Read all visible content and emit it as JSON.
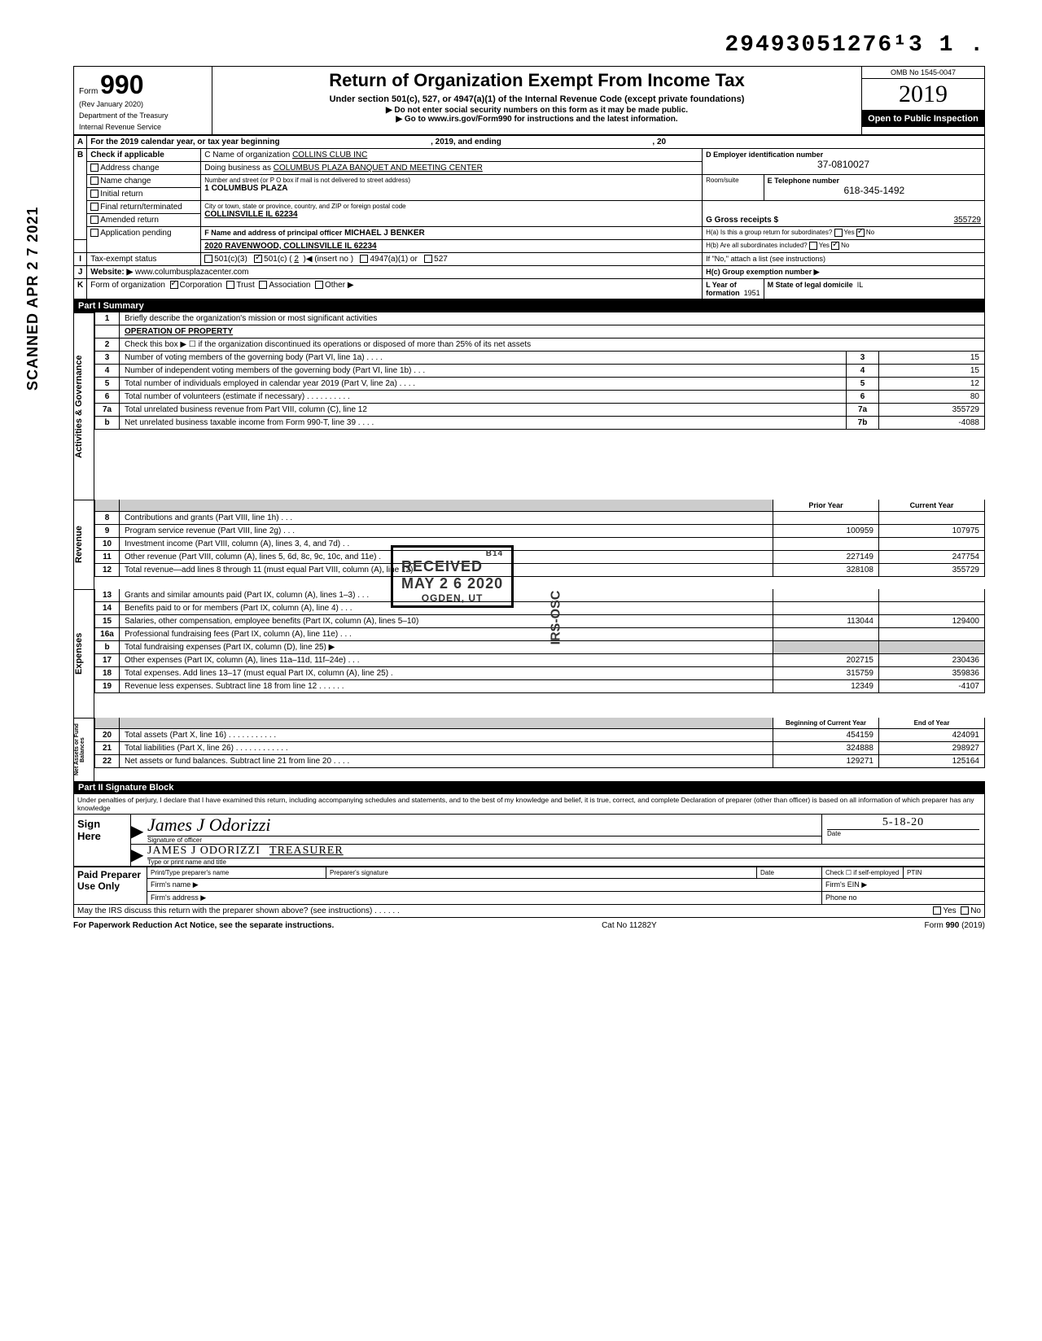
{
  "topnumber": "29493051276¹3  1 .",
  "vertical_scan": "SCANNED APR 2 7 2021",
  "form": {
    "form_label": "Form",
    "number": "990",
    "rev": "(Rev January 2020)",
    "dept1": "Department of the Treasury",
    "dept2": "Internal Revenue Service"
  },
  "title": {
    "main": "Return of Organization Exempt From Income Tax",
    "sub1": "Under section 501(c), 527, or 4947(a)(1) of the Internal Revenue Code (except private foundations)",
    "sub2": "▶ Do not enter social security numbers on this form as it may be made public.",
    "sub3": "▶ Go to www.irs.gov/Form990 for instructions and the latest information."
  },
  "rightbox": {
    "omb": "OMB No 1545-0047",
    "year": "2019",
    "open": "Open to Public Inspection"
  },
  "rowA": {
    "label": "A",
    "text1": "For the 2019 calendar year, or tax year beginning",
    "text2": ", 2019, and ending",
    "text3": ", 20"
  },
  "rowB": {
    "label": "B",
    "check_label": "Check if applicable",
    "opts": [
      "Address change",
      "Name change",
      "Initial return",
      "Final return/terminated",
      "Amended return",
      "Application pending"
    ]
  },
  "C": {
    "name_lbl": "C Name of organization",
    "name": "COLLINS CLUB INC",
    "dba_lbl": "Doing business as",
    "dba": "COLUMBUS PLAZA BANQUET AND MEETING CENTER",
    "addr_lbl": "Number and street (or P O  box if mail is not delivered to street address)",
    "addr": "1 COLUMBUS PLAZA",
    "city_lbl": "City or town, state or province, country, and ZIP or foreign postal code",
    "city": "COLLINSVILLE IL  62234",
    "room_lbl": "Room/suite"
  },
  "D": {
    "lbl": "D Employer identification number",
    "val": "37-0810027"
  },
  "E": {
    "lbl": "E Telephone number",
    "val": "618-345-1492"
  },
  "G": {
    "lbl": "G Gross receipts $",
    "val": "355729"
  },
  "F": {
    "lbl": "F Name and address of principal officer",
    "name": "MICHAEL J BENKER",
    "addr": "2020 RAVENWOOD, COLLINSVILLE IL  62234"
  },
  "Ha": {
    "lbl": "H(a) Is this a group return for subordinates?",
    "yes": "Yes",
    "no": "No"
  },
  "Hb": {
    "lbl": "H(b) Are all subordinates included?",
    "yes": "Yes",
    "no": "No"
  },
  "Hnote": "If \"No,\" attach a list  (see instructions)",
  "Hc": {
    "lbl": "H(c) Group exemption number ▶"
  },
  "I": {
    "lbl": "I",
    "text": "Tax-exempt status",
    "opts": [
      "501(c)(3)",
      "501(c) (",
      "◀ (insert no )",
      "4947(a)(1) or",
      "527"
    ],
    "num": "2",
    "checked": 1
  },
  "J": {
    "lbl": "J",
    "text": "Website: ▶",
    "val": "www.columbusplazacenter.com"
  },
  "K": {
    "lbl": "K",
    "text": "Form of organization",
    "opts": [
      "Corporation",
      "Trust",
      "Association",
      "Other ▶"
    ],
    "checked": 0,
    "Llbl": "L Year of formation",
    "Lval": "1951",
    "Mlbl": "M State of legal domicile",
    "Mval": "IL"
  },
  "part1_hdr": "Part I    Summary",
  "side_labels": {
    "ag": "Activities & Governance",
    "rev": "Revenue",
    "exp": "Expenses",
    "nab": "Net Assets or\nFund Balances"
  },
  "lines_ag": [
    {
      "n": "1",
      "t": "Briefly describe the organization's mission or most significant activities",
      "v": ""
    },
    {
      "n": "",
      "t": "OPERATION OF PROPERTY",
      "v": "",
      "under": true,
      "bold": true
    },
    {
      "n": "2",
      "t": "Check this box ▶ ☐ if the organization discontinued its operations or disposed of more than 25% of its net assets",
      "v": ""
    },
    {
      "n": "3",
      "t": "Number of voting members of the governing body (Part VI, line 1a) .    .    .    .",
      "box": "3",
      "v": "15"
    },
    {
      "n": "4",
      "t": "Number of independent voting members of the governing body (Part VI, line 1b)    .    .    .",
      "box": "4",
      "v": "15"
    },
    {
      "n": "5",
      "t": "Total number of individuals employed in calendar year 2019 (Part V, line 2a)    .    .    .    .",
      "box": "5",
      "v": "12"
    },
    {
      "n": "6",
      "t": "Total number of volunteers (estimate if necessary)    .    .    .    .    .    .    .    .    .    .",
      "box": "6",
      "v": "80"
    },
    {
      "n": "7a",
      "t": "Total unrelated business revenue from Part VIII, column (C), line 12",
      "box": "7a",
      "v": "355729"
    },
    {
      "n": "b",
      "t": "Net unrelated business taxable income from Form 990-T, line 39    .    .    .    .",
      "box": "7b",
      "v": "-4088"
    }
  ],
  "rev_hdr": {
    "py": "Prior Year",
    "cy": "Current Year"
  },
  "lines_rev": [
    {
      "n": "8",
      "t": "Contributions and grants (Part VIII, line 1h)    .    .    .",
      "py": "",
      "cy": ""
    },
    {
      "n": "9",
      "t": "Program service revenue (Part VIII, line 2g)    .    .    .",
      "py": "100959",
      "cy": "107975"
    },
    {
      "n": "10",
      "t": "Investment income (Part VIII, column (A), lines 3, 4, and 7d)    .    .",
      "py": "",
      "cy": ""
    },
    {
      "n": "11",
      "t": "Other revenue (Part VIII, column (A), lines 5, 6d, 8c, 9c, 10c, and 11e)    .",
      "py": "227149",
      "cy": "247754"
    },
    {
      "n": "12",
      "t": "Total revenue—add lines 8 through 11 (must equal Part VIII, column (A), line 12)",
      "py": "328108",
      "cy": "355729"
    }
  ],
  "lines_exp": [
    {
      "n": "13",
      "t": "Grants and similar amounts paid (Part IX, column (A), lines 1–3) .    .    .",
      "py": "",
      "cy": ""
    },
    {
      "n": "14",
      "t": "Benefits paid to or for members (Part IX, column (A), line 4)    .    .    .",
      "py": "",
      "cy": ""
    },
    {
      "n": "15",
      "t": "Salaries, other compensation, employee benefits (Part IX, column (A), lines 5–10)",
      "py": "113044",
      "cy": "129400"
    },
    {
      "n": "16a",
      "t": "Professional fundraising fees (Part IX, column (A),  line 11e)    .    .    .",
      "py": "",
      "cy": ""
    },
    {
      "n": "b",
      "t": "Total fundraising expenses (Part IX, column (D), line 25) ▶",
      "py": "gray",
      "cy": "gray"
    },
    {
      "n": "17",
      "t": "Other expenses (Part IX, column (A), lines 11a–11d, 11f–24e)      .    .    .",
      "py": "202715",
      "cy": "230436"
    },
    {
      "n": "18",
      "t": "Total expenses. Add lines 13–17 (must equal Part IX, column (A), line 25)    .",
      "py": "315759",
      "cy": "359836"
    },
    {
      "n": "19",
      "t": "Revenue less expenses. Subtract line 18 from line 12    .    .    .    .    .    .",
      "py": "12349",
      "cy": "-4107"
    }
  ],
  "nab_hdr": {
    "py": "Beginning of Current Year",
    "cy": "End of Year"
  },
  "lines_nab": [
    {
      "n": "20",
      "t": "Total assets (Part X, line 16)      .    .    .    .    .    .    .    .    .    .    .",
      "py": "454159",
      "cy": "424091"
    },
    {
      "n": "21",
      "t": "Total liabilities (Part X, line 26) .    .    .    .    .    .    .    .    .    .    .    .",
      "py": "324888",
      "cy": "298927"
    },
    {
      "n": "22",
      "t": "Net assets or fund balances. Subtract line 21 from line 20    .    .    .    .",
      "py": "129271",
      "cy": "125164"
    }
  ],
  "part2_hdr": "Part II    Signature Block",
  "perjury": "Under penalties of perjury, I declare that I have examined this return, including accompanying schedules and statements, and to the best of my knowledge  and belief, it is true, correct, and complete  Declaration of preparer (other than officer) is based on all information of which preparer has any knowledge",
  "sign": {
    "here": "Sign Here",
    "sig_lbl": "Signature of officer",
    "date_lbl": "Date",
    "date_val": "5-18-20",
    "type_lbl": "Type or print name and title",
    "name": "JAMES  J    ODORIZZI",
    "title": "TREASURER",
    "sig_script": "James J Odorizzi"
  },
  "paid": {
    "lbl": "Paid Preparer Use Only",
    "c1": "Print/Type preparer's name",
    "c2": "Preparer's signature",
    "c3": "Date",
    "c4": "Check ☐ if self-employed",
    "c5": "PTIN",
    "firm": "Firm's name    ▶",
    "ein": "Firm's EIN  ▶",
    "addr": "Firm's address ▶",
    "phone": "Phone no"
  },
  "discuss": {
    "t": "May the IRS discuss this return with the preparer shown above? (see instructions)      .    .    .    .    .    .",
    "yes": "Yes",
    "no": "No"
  },
  "footer": {
    "l": "For Paperwork Reduction Act Notice, see the separate instructions.",
    "c": "Cat  No  11282Y",
    "r": "Form 990 (2019)"
  },
  "stamps": {
    "received": "RECEIVED",
    "date": "MAY 2 6 2020",
    "ogden": "OGDEN, UT",
    "irs_osc": "IRS-OSC",
    "b14": "B14"
  }
}
